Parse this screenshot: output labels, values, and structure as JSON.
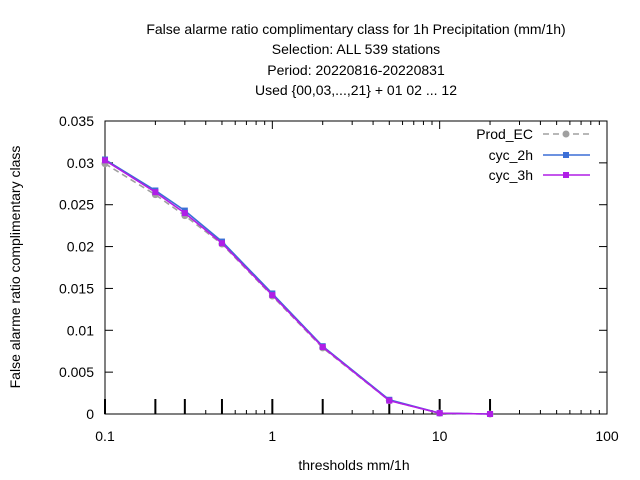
{
  "chart_data": {
    "type": "line",
    "title_lines": [
      "False alarme ratio complimentary class  for 1h Precipitation (mm/1h)",
      "Selection: ALL    539 stations",
      "Period: 20220816-20220831",
      "Used {00,03,...,21} + 01 02 ... 12"
    ],
    "xlabel": "thresholds mm/1h",
    "ylabel": "False alarme ratio complimentary class",
    "x_scale": "log",
    "xlim": [
      0.1,
      100
    ],
    "ylim": [
      0,
      0.035
    ],
    "x_ticks": [
      0.1,
      1,
      10,
      100
    ],
    "x_tick_labels": [
      "0.1",
      "1",
      "10",
      "100"
    ],
    "y_ticks": [
      0,
      0.005,
      0.01,
      0.015,
      0.02,
      0.025,
      0.03,
      0.035
    ],
    "y_tick_labels": [
      "0",
      "0.005",
      "0.01",
      "0.015",
      "0.02",
      "0.025",
      "0.03",
      "0.035"
    ],
    "threshold_marks": [
      0.1,
      0.2,
      0.3,
      0.5,
      1,
      2,
      5,
      10,
      20
    ],
    "grid": false,
    "legend_position": "top-right",
    "series": [
      {
        "name": "Prod_EC",
        "color": "#a0a0a0",
        "dashed": true,
        "marker": "circle",
        "x": [
          0.1,
          0.2,
          0.3,
          0.5,
          1,
          2,
          5,
          10,
          20
        ],
        "y": [
          0.0299,
          0.0262,
          0.0237,
          0.0203,
          0.0141,
          0.0079,
          0.0016,
          0.0001,
          0.0
        ]
      },
      {
        "name": "cyc_2h",
        "color": "#3c6fd6",
        "dashed": false,
        "marker": "square",
        "x": [
          0.1,
          0.2,
          0.3,
          0.5,
          1,
          2,
          5,
          10,
          20
        ],
        "y": [
          0.0304,
          0.0267,
          0.0243,
          0.0206,
          0.0144,
          0.0081,
          0.0017,
          0.0001,
          0.0
        ]
      },
      {
        "name": "cyc_3h",
        "color": "#b01ee6",
        "dashed": false,
        "marker": "square",
        "x": [
          0.1,
          0.2,
          0.3,
          0.5,
          1,
          2,
          5,
          10,
          20
        ],
        "y": [
          0.0303,
          0.0265,
          0.024,
          0.0204,
          0.0142,
          0.008,
          0.0016,
          0.0001,
          0.0
        ]
      }
    ]
  }
}
